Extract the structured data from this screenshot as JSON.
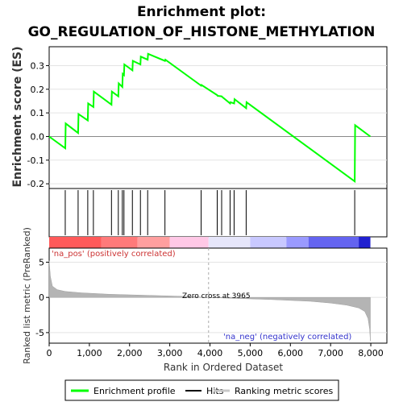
{
  "chart_data": {
    "type": "line",
    "title_line1": "Enrichment plot:",
    "title_line2": "GO_REGULATION_OF_HISTONE_METHYLATION",
    "top_panel": {
      "ylabel": "Enrichment score (ES)",
      "ylim": [
        -0.22,
        0.38
      ],
      "yticks": [
        -0.2,
        -0.1,
        0.0,
        0.1,
        0.2,
        0.3
      ],
      "ytick_labels": [
        "-0.2",
        "-0.1",
        "0.0",
        "0.1",
        "0.2",
        "0.3"
      ],
      "series": [
        {
          "name": "Enrichment profile",
          "color": "#00ff00",
          "x": [
            0,
            400,
            410,
            720,
            730,
            960,
            970,
            1100,
            1110,
            1550,
            1560,
            1720,
            1730,
            1820,
            1830,
            1860,
            1870,
            2070,
            2080,
            2270,
            2280,
            2450,
            2460,
            2880,
            2890,
            3780,
            3790,
            4180,
            4190,
            4290,
            4300,
            4500,
            4510,
            4600,
            4610,
            4900,
            4910,
            7600,
            7610,
            7990
          ],
          "y": [
            0.0,
            -0.05,
            0.055,
            0.015,
            0.095,
            0.068,
            0.14,
            0.125,
            0.19,
            0.135,
            0.19,
            0.17,
            0.225,
            0.21,
            0.265,
            0.26,
            0.305,
            0.28,
            0.32,
            0.305,
            0.338,
            0.325,
            0.35,
            0.32,
            0.325,
            0.215,
            0.218,
            0.175,
            0.172,
            0.17,
            0.168,
            0.14,
            0.145,
            0.14,
            0.158,
            0.12,
            0.145,
            -0.19,
            0.048,
            0.0
          ]
        }
      ]
    },
    "hits": {
      "name": "Hits",
      "positions": [
        400,
        720,
        960,
        1100,
        1550,
        1720,
        1820,
        1860,
        2070,
        2270,
        2450,
        2880,
        3780,
        4180,
        4290,
        4500,
        4600,
        4900,
        7600
      ]
    },
    "ranking_bar": {
      "pos_label": "'na_pos' (positively correlated)",
      "neg_label": "'na_neg' (negatively correlated)",
      "segments": [
        {
          "from": 0,
          "to": 1300,
          "color": "#ff5a5a"
        },
        {
          "from": 1300,
          "to": 2200,
          "color": "#ff7a7a"
        },
        {
          "from": 2200,
          "to": 3000,
          "color": "#ff9f9f"
        },
        {
          "from": 3000,
          "to": 3965,
          "color": "#ffc8e6"
        },
        {
          "from": 3965,
          "to": 5000,
          "color": "#e6e6fa"
        },
        {
          "from": 5000,
          "to": 5900,
          "color": "#c8c8ff"
        },
        {
          "from": 5900,
          "to": 6450,
          "color": "#9a9aff"
        },
        {
          "from": 6450,
          "to": 7700,
          "color": "#6464f0"
        },
        {
          "from": 7700,
          "to": 7990,
          "color": "#2020d0"
        }
      ]
    },
    "bottom_panel": {
      "ylabel": "Ranked list metric (PreRanked)",
      "xlabel": "Rank in Ordered Dataset",
      "ylim": [
        -6.5,
        7
      ],
      "yticks": [
        -5,
        0,
        5
      ],
      "ytick_labels": [
        "-5",
        "0",
        "5"
      ],
      "xlim": [
        0,
        8400
      ],
      "xticks": [
        0,
        1000,
        2000,
        3000,
        4000,
        5000,
        6000,
        7000,
        8000
      ],
      "xtick_labels": [
        "0",
        "1,000",
        "2,000",
        "3,000",
        "4,000",
        "5,000",
        "6,000",
        "7,000",
        "8,000"
      ],
      "zero_cross_label": "Zero cross at 3965",
      "zero_cross": 3965,
      "metric_x": [
        0,
        30,
        80,
        200,
        400,
        800,
        1500,
        2500,
        3500,
        3965,
        4500,
        5500,
        6500,
        7000,
        7400,
        7700,
        7850,
        7930,
        7970,
        7990
      ],
      "metric_y": [
        5.2,
        3.0,
        1.6,
        1.1,
        0.85,
        0.65,
        0.45,
        0.28,
        0.12,
        0.0,
        -0.12,
        -0.3,
        -0.55,
        -0.8,
        -1.1,
        -1.5,
        -2.0,
        -3.0,
        -4.5,
        -6.2
      ]
    },
    "legend": {
      "items": [
        {
          "label": "Enrichment profile",
          "color": "#00ff00"
        },
        {
          "label": "Hits",
          "color": "#000000"
        },
        {
          "label": "Ranking metric scores",
          "color": "#c8c8c8"
        }
      ]
    }
  }
}
